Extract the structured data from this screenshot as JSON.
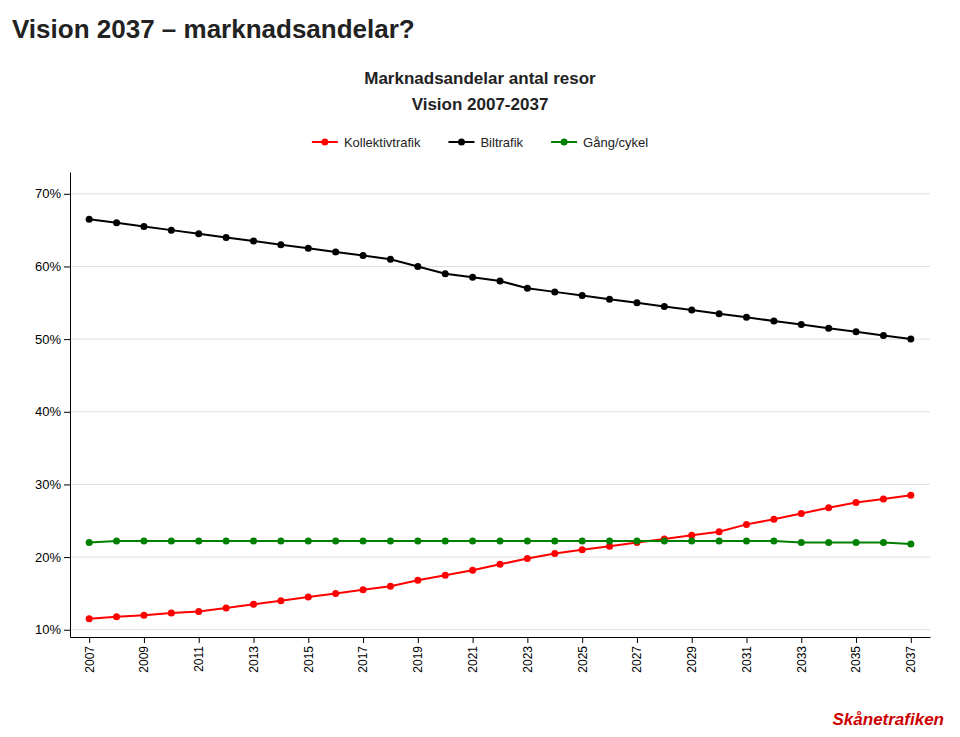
{
  "chart_data": {
    "type": "line",
    "title": "Vision 2037 – marknadsandelar?",
    "subtitle": [
      "Marknadsandelar antal resor",
      "Vision 2007-2037"
    ],
    "annotations": [
      {
        "text": "Skånetrafiken",
        "color": "#cc0000"
      }
    ],
    "x": [
      2007,
      2008,
      2009,
      2010,
      2011,
      2012,
      2013,
      2014,
      2015,
      2016,
      2017,
      2018,
      2019,
      2020,
      2021,
      2022,
      2023,
      2024,
      2025,
      2026,
      2027,
      2028,
      2029,
      2030,
      2031,
      2032,
      2033,
      2034,
      2035,
      2036,
      2037
    ],
    "series": [
      {
        "name": "Kollektivtrafik",
        "color": "#ff0000",
        "marker": "circle",
        "line_style": "solid",
        "values": [
          11.5,
          11.8,
          12.0,
          12.3,
          12.5,
          13.0,
          13.5,
          14.0,
          14.5,
          15.0,
          15.5,
          16.0,
          16.8,
          17.5,
          18.2,
          19.0,
          19.8,
          20.5,
          21.0,
          21.5,
          22.0,
          22.5,
          23.0,
          23.5,
          24.5,
          25.2,
          26.0,
          26.8,
          27.5,
          28.0,
          28.5
        ]
      },
      {
        "name": "Biltrafik",
        "color": "#000000",
        "marker": "circle",
        "line_style": "solid",
        "values": [
          66.5,
          66.0,
          65.5,
          65.0,
          64.5,
          64.0,
          63.5,
          63.0,
          62.5,
          62.0,
          61.5,
          61.0,
          60.0,
          59.0,
          58.5,
          58.0,
          57.0,
          56.5,
          56.0,
          55.5,
          55.0,
          54.5,
          54.0,
          53.5,
          53.0,
          52.5,
          52.0,
          51.5,
          51.0,
          50.5,
          50.0
        ]
      },
      {
        "name": "Gång/cykel",
        "color": "#008000",
        "marker": "circle",
        "line_style": "solid",
        "values": [
          22.0,
          22.2,
          22.2,
          22.2,
          22.2,
          22.2,
          22.2,
          22.2,
          22.2,
          22.2,
          22.2,
          22.2,
          22.2,
          22.2,
          22.2,
          22.2,
          22.2,
          22.2,
          22.2,
          22.2,
          22.2,
          22.2,
          22.2,
          22.2,
          22.2,
          22.2,
          22.0,
          22.0,
          22.0,
          22.0,
          21.8
        ]
      }
    ],
    "xlim": [
      2006.3,
      2037.7
    ],
    "xticks": [
      2007,
      2009,
      2011,
      2013,
      2015,
      2017,
      2019,
      2021,
      2023,
      2025,
      2027,
      2029,
      2031,
      2033,
      2035,
      2037
    ],
    "ylim": [
      9,
      73
    ],
    "yticks": [
      {
        "value": 10,
        "label": "10%"
      },
      {
        "value": 20,
        "label": "20%"
      },
      {
        "value": 30,
        "label": "30%"
      },
      {
        "value": 40,
        "label": "40%"
      },
      {
        "value": 50,
        "label": "50%"
      },
      {
        "value": 60,
        "label": "60%"
      },
      {
        "value": 70,
        "label": "70%"
      }
    ],
    "grid": true,
    "legend": "top"
  }
}
